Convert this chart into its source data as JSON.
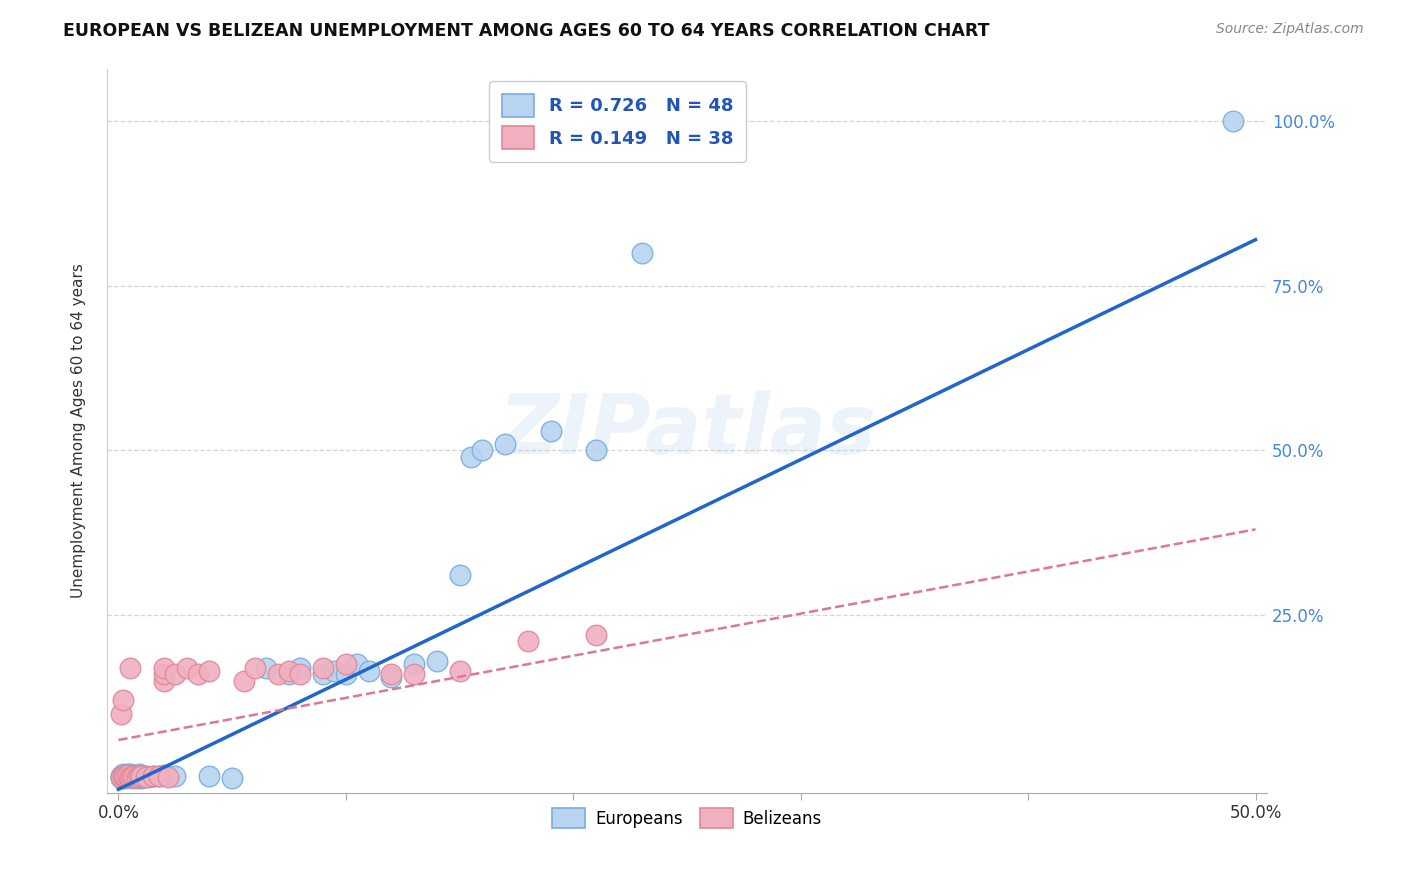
{
  "title": "EUROPEAN VS BELIZEAN UNEMPLOYMENT AMONG AGES 60 TO 64 YEARS CORRELATION CHART",
  "source": "Source: ZipAtlas.com",
  "ylabel": "Unemployment Among Ages 60 to 64 years",
  "xlim": [
    -0.005,
    0.505
  ],
  "ylim": [
    -0.02,
    1.08
  ],
  "xticks": [
    0.0,
    0.1,
    0.2,
    0.3,
    0.4,
    0.5
  ],
  "xticklabels_show": [
    "0.0%",
    "50.0%"
  ],
  "xticklabels_pos": [
    0.0,
    0.5
  ],
  "yticks": [
    0.25,
    0.5,
    0.75,
    1.0
  ],
  "yticklabels": [
    "25.0%",
    "50.0%",
    "75.0%",
    "100.0%"
  ],
  "european_R": 0.726,
  "european_N": 48,
  "belizean_R": 0.149,
  "belizean_N": 38,
  "european_color": "#b8d4f0",
  "european_edge": "#7aacde",
  "belizean_color": "#f0b0c0",
  "belizean_edge": "#e08898",
  "trend_european_color": "#2266cc",
  "trend_belizean_color": "#dd7799",
  "watermark": "ZIPatlas",
  "background_color": "#ffffff",
  "grid_color": "#cccccc",
  "eu_trend_x0": 0.0,
  "eu_trend_y0": -0.015,
  "eu_trend_x1": 0.5,
  "eu_trend_y1": 0.82,
  "bel_trend_x0": 0.0,
  "bel_trend_y0": 0.06,
  "bel_trend_x1": 0.5,
  "bel_trend_y1": 0.38,
  "european_x": [
    0.001,
    0.001,
    0.002,
    0.002,
    0.003,
    0.003,
    0.004,
    0.004,
    0.005,
    0.005,
    0.006,
    0.006,
    0.007,
    0.007,
    0.008,
    0.008,
    0.009,
    0.009,
    0.01,
    0.01,
    0.011,
    0.012,
    0.013,
    0.015,
    0.018,
    0.02,
    0.025,
    0.04,
    0.05,
    0.065,
    0.075,
    0.08,
    0.09,
    0.095,
    0.1,
    0.105,
    0.11,
    0.12,
    0.13,
    0.14,
    0.15,
    0.155,
    0.16,
    0.17,
    0.19,
    0.21,
    0.23,
    0.49
  ],
  "european_y": [
    0.003,
    0.006,
    0.004,
    0.008,
    0.003,
    0.007,
    0.005,
    0.009,
    0.004,
    0.008,
    0.003,
    0.006,
    0.004,
    0.007,
    0.003,
    0.006,
    0.004,
    0.008,
    0.003,
    0.007,
    0.005,
    0.006,
    0.004,
    0.006,
    0.005,
    0.007,
    0.005,
    0.005,
    0.003,
    0.17,
    0.16,
    0.17,
    0.16,
    0.165,
    0.16,
    0.175,
    0.165,
    0.155,
    0.175,
    0.18,
    0.31,
    0.49,
    0.5,
    0.51,
    0.53,
    0.5,
    0.8,
    1.0
  ],
  "belizean_x": [
    0.001,
    0.001,
    0.002,
    0.002,
    0.003,
    0.003,
    0.004,
    0.004,
    0.005,
    0.005,
    0.006,
    0.007,
    0.008,
    0.009,
    0.01,
    0.012,
    0.015,
    0.018,
    0.02,
    0.02,
    0.02,
    0.022,
    0.025,
    0.03,
    0.035,
    0.04,
    0.055,
    0.06,
    0.07,
    0.075,
    0.08,
    0.09,
    0.1,
    0.12,
    0.13,
    0.15,
    0.18,
    0.21
  ],
  "belizean_y": [
    0.004,
    0.1,
    0.005,
    0.12,
    0.004,
    0.006,
    0.005,
    0.007,
    0.004,
    0.17,
    0.005,
    0.006,
    0.004,
    0.006,
    0.005,
    0.004,
    0.006,
    0.005,
    0.15,
    0.16,
    0.17,
    0.004,
    0.16,
    0.17,
    0.16,
    0.165,
    0.15,
    0.17,
    0.16,
    0.165,
    0.16,
    0.17,
    0.175,
    0.16,
    0.16,
    0.165,
    0.21,
    0.22
  ]
}
